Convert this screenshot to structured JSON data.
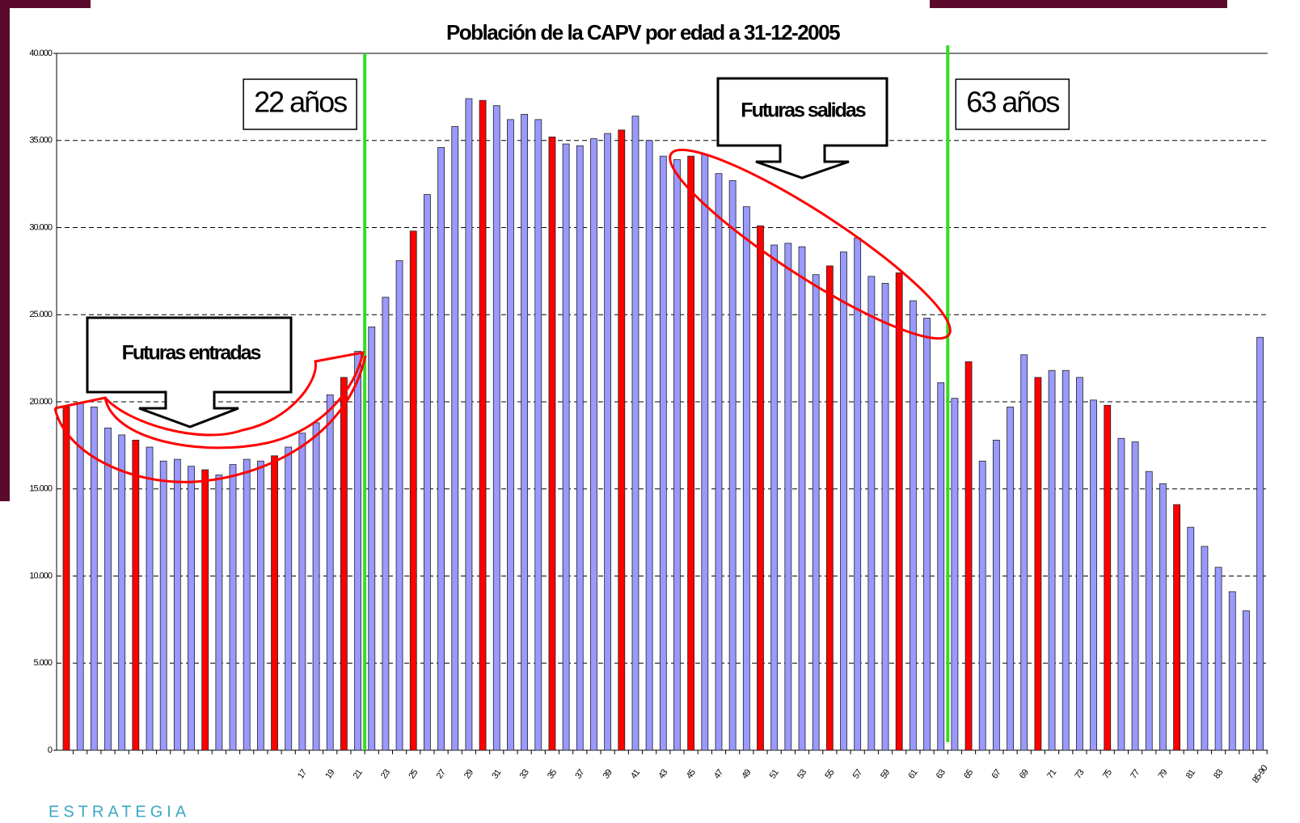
{
  "chart_data": {
    "type": "bar",
    "title": "Población de la CAPV por edad a 31-12-2005",
    "categories": [
      null,
      null,
      null,
      null,
      null,
      null,
      null,
      null,
      null,
      null,
      null,
      null,
      null,
      null,
      null,
      null,
      null,
      "17",
      null,
      "19",
      null,
      "21",
      null,
      "23",
      null,
      "25",
      null,
      "27",
      null,
      "29",
      null,
      "31",
      null,
      "33",
      null,
      "35",
      null,
      "37",
      null,
      "39",
      null,
      "41",
      null,
      "43",
      null,
      "45",
      null,
      "47",
      null,
      "49",
      null,
      "51",
      null,
      "53",
      null,
      "55",
      null,
      "57",
      null,
      "59",
      null,
      "61",
      null,
      "63",
      null,
      "65",
      null,
      "67",
      null,
      "69",
      null,
      "71",
      null,
      "73",
      null,
      "75",
      null,
      "77",
      null,
      "79",
      null,
      "81",
      null,
      "83",
      null,
      null,
      "85-90"
    ],
    "values": [
      19700,
      19900,
      19700,
      18500,
      18100,
      17800,
      17400,
      16600,
      16700,
      16300,
      16100,
      15800,
      16400,
      16700,
      16600,
      16900,
      17400,
      18200,
      18800,
      20400,
      21400,
      22900,
      24300,
      26000,
      28100,
      29800,
      31900,
      34600,
      35800,
      37400,
      37300,
      37000,
      36200,
      36500,
      36200,
      35200,
      34800,
      34700,
      35100,
      35400,
      35600,
      36400,
      35000,
      34100,
      33900,
      34100,
      34200,
      33100,
      32700,
      31200,
      30100,
      29000,
      29100,
      28900,
      27300,
      27800,
      28600,
      29400,
      27200,
      26800,
      27400,
      25800,
      24800,
      21100,
      20200,
      22300,
      16600,
      17800,
      19700,
      22700,
      21400,
      21800,
      21800,
      21400,
      20100,
      19800,
      17900,
      17700,
      16000,
      15300,
      14100,
      12800,
      11700,
      10500,
      9100,
      8000,
      23700
    ],
    "color": "#9999ff",
    "highlight_color": "#ff0000",
    "highlight_indices": [
      0,
      5,
      10,
      15,
      20,
      25,
      30,
      35,
      40,
      45,
      50,
      55,
      60,
      65,
      70,
      75,
      80
    ],
    "ylim": [
      0,
      40000
    ],
    "yticks": [
      0,
      {
        "value": 5000,
        "label": "5.000"
      },
      {
        "value": 10000,
        "label": "10.000"
      },
      {
        "value": 15000,
        "label": "15.000"
      },
      {
        "value": 20000,
        "label": "20.000"
      },
      {
        "value": 25000,
        "label": "25.000"
      },
      {
        "value": 30000,
        "label": "30.000"
      },
      {
        "value": 35000,
        "label": "35.000"
      },
      {
        "value": 40000,
        "label": "40.000"
      }
    ],
    "grid": true,
    "markers": [
      {
        "label": "22 años",
        "at": 21.5,
        "color": "#33dd22"
      },
      {
        "label": "63 años",
        "at": 63.5,
        "color": "#33dd22"
      }
    ],
    "annotations": [
      "Futuras entradas",
      "Futuras salidas"
    ]
  },
  "footer": {
    "brand": "ESTRATEGIA"
  }
}
